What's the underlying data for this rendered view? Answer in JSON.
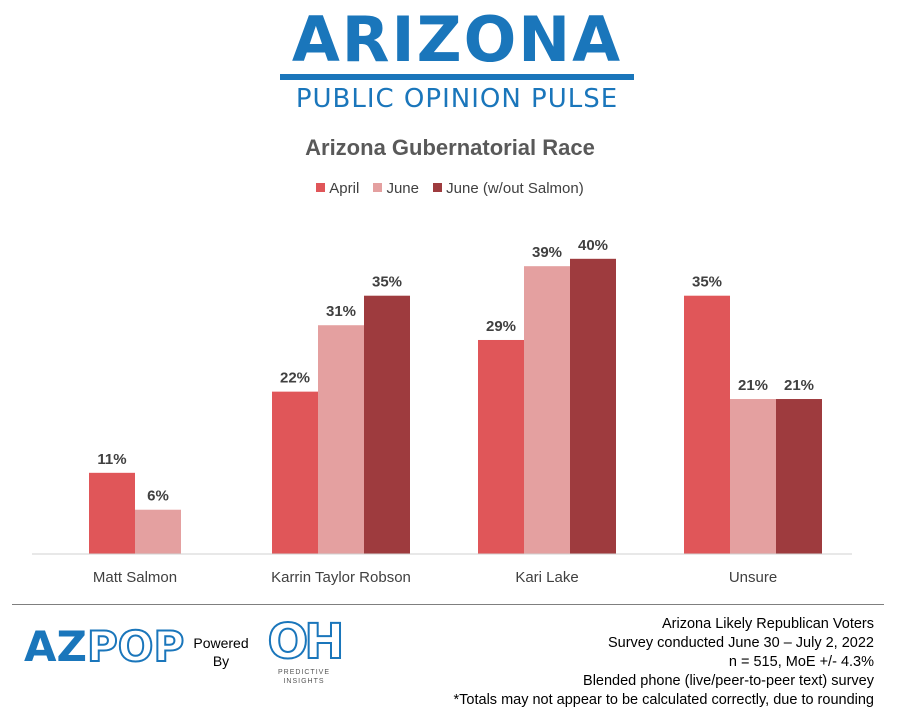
{
  "header": {
    "brand_title": "ARIZONA",
    "brand_subtitle": "PUBLIC OPINION PULSE"
  },
  "chart_data": {
    "type": "bar",
    "title": "Arizona Gubernatorial Race",
    "categories": [
      "Matt Salmon",
      "Karrin Taylor Robson",
      "Kari Lake",
      "Unsure"
    ],
    "series": [
      {
        "name": "April",
        "color": "#e05659",
        "values": [
          11,
          22,
          29,
          35
        ],
        "labels": [
          "11%",
          "22%",
          "29%",
          "35%"
        ]
      },
      {
        "name": "June",
        "color": "#e4a0a0",
        "values": [
          6,
          31,
          39,
          21
        ],
        "labels": [
          "6%",
          "31%",
          "39%",
          "21%"
        ]
      },
      {
        "name": "June (w/out Salmon)",
        "color": "#9e3b3e",
        "values": [
          null,
          35,
          40,
          21
        ],
        "labels": [
          null,
          "35%",
          "40%",
          "21%"
        ]
      }
    ],
    "ylim": [
      0,
      45
    ],
    "grid": false,
    "legend": "top"
  },
  "footer": {
    "logo_left_solid": "AZ",
    "logo_left_outline": "POP",
    "powered_line1": "Powered",
    "powered_line2": "By",
    "logo_right_mark": "OH",
    "logo_right_sub": "PREDICTIVE INSIGHTS",
    "notes": [
      "Arizona Likely Republican Voters",
      "Survey conducted June 30 – July 2, 2022",
      "n = 515, MoE +/- 4.3%",
      "Blended phone (live/peer-to-peer text) survey",
      "*Totals may not appear to be calculated correctly, due to rounding"
    ]
  }
}
